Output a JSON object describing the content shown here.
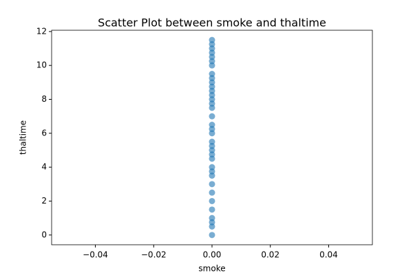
{
  "chart_data": {
    "type": "scatter",
    "title": "Scatter Plot between smoke and thaltime",
    "x_label": "smoke",
    "y_label": "thaltime",
    "color": "#1f77b4",
    "x": [
      0,
      0,
      0,
      0,
      0,
      0,
      0,
      0,
      0,
      0,
      0,
      0,
      0,
      0,
      0,
      0,
      0,
      0,
      0,
      0,
      0,
      0,
      0,
      0,
      0,
      0,
      0,
      0,
      0,
      0,
      0,
      0,
      0,
      0,
      0,
      0
    ],
    "y": [
      0,
      0.5,
      0.75,
      1,
      1.5,
      2,
      2.5,
      3,
      3.5,
      3.75,
      4,
      4.5,
      4.75,
      5,
      5.25,
      5.5,
      6,
      6.25,
      6.5,
      7,
      7.5,
      7.75,
      8,
      8.25,
      8.5,
      8.75,
      9,
      9.25,
      9.5,
      10,
      10.25,
      10.5,
      10.75,
      11,
      11.25,
      11.5
    ],
    "xlim": [
      -0.055,
      0.055
    ],
    "xticks": [
      {
        "value": -0.04,
        "label": "−0.04"
      },
      {
        "value": -0.02,
        "label": "−0.02"
      },
      {
        "value": 0,
        "label": "0.00"
      },
      {
        "value": 0.02,
        "label": "0.02"
      },
      {
        "value": 0.04,
        "label": "0.04"
      }
    ],
    "ylim": [
      -0.575,
      12.075
    ],
    "yticks": [
      0,
      2,
      4,
      6,
      8,
      10,
      12
    ]
  }
}
